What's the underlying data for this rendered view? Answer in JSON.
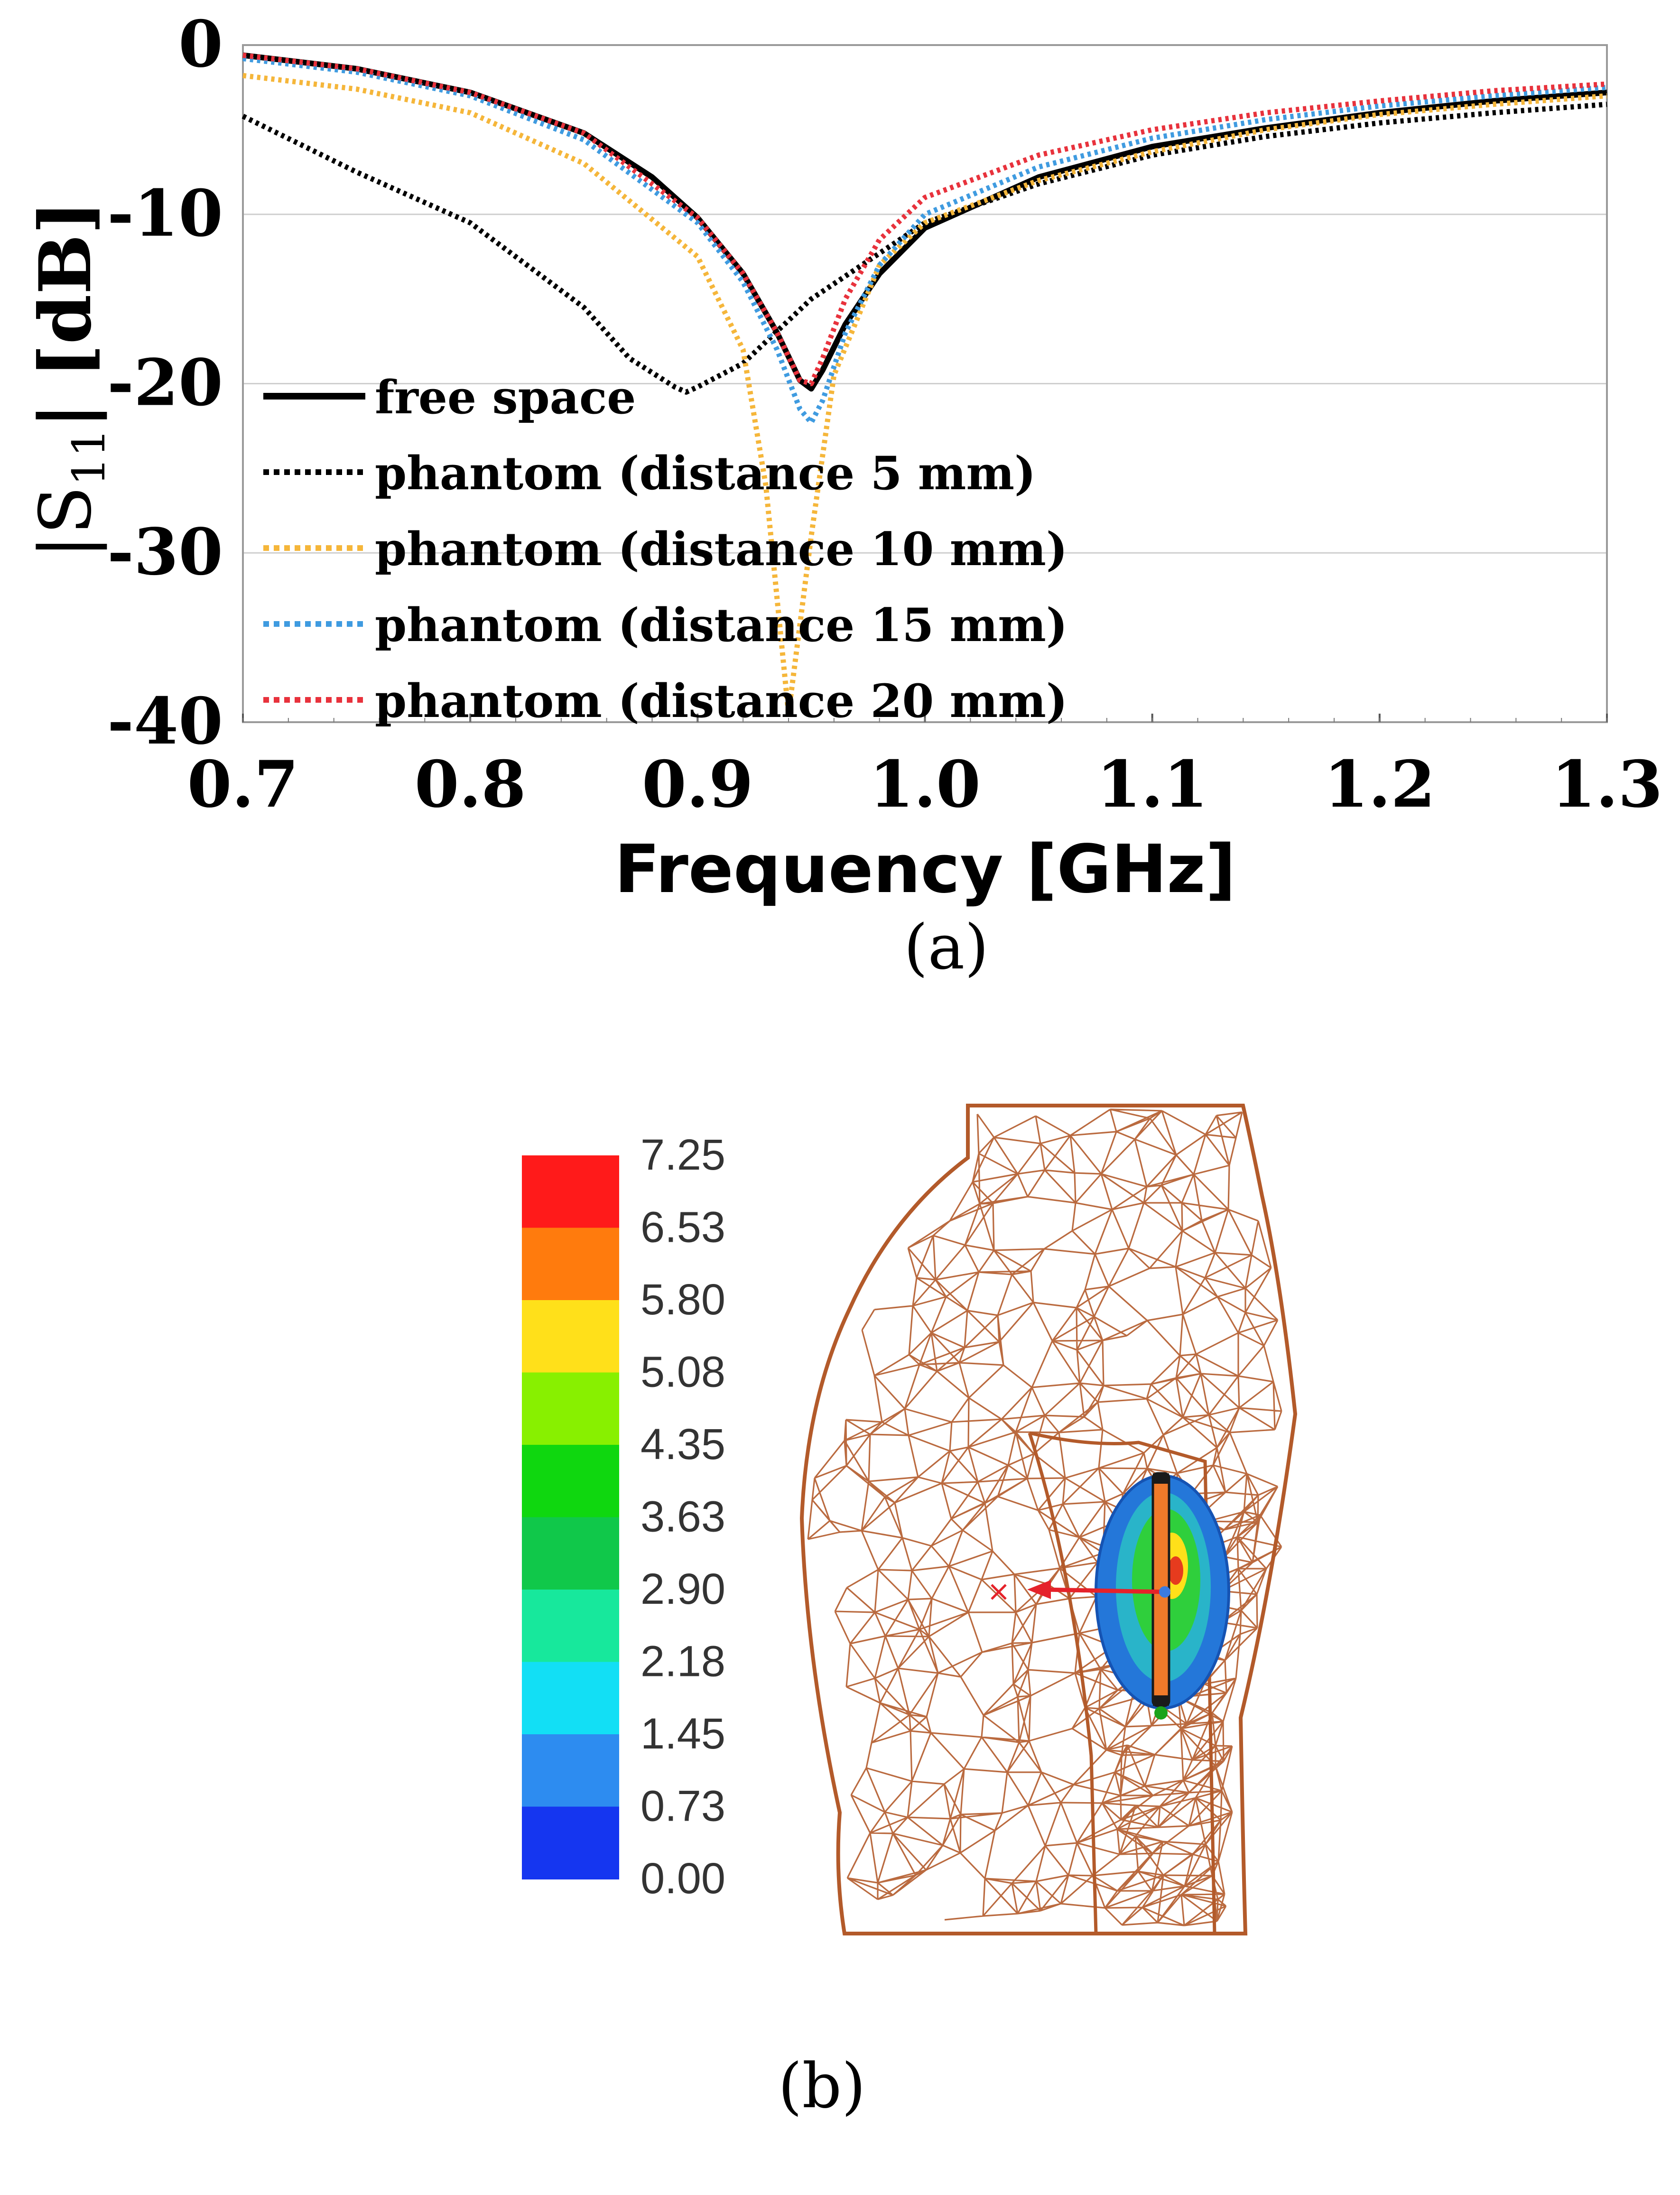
{
  "panel_a": {
    "label": "(a)"
  },
  "panel_b": {
    "label": "(b)"
  },
  "chart_data": [
    {
      "type": "line",
      "ylabel_prefix": "|S",
      "ylabel_sub": "11",
      "ylabel_suffix": "| [dB]",
      "xlabel": "Frequency [GHz]",
      "xlim": [
        0.7,
        1.3
      ],
      "ylim": [
        -40,
        0
      ],
      "xticks": [
        "0.7",
        "0.8",
        "0.9",
        "1.0",
        "1.1",
        "1.2",
        "1.3"
      ],
      "yticks": [
        "0",
        "-10",
        "-20",
        "-30",
        "-40"
      ],
      "grid": "horizontal",
      "legend_position": "bottom-left",
      "series": [
        {
          "name": "free space",
          "style": "solid",
          "color": "#000000",
          "x": [
            0.7,
            0.75,
            0.8,
            0.85,
            0.88,
            0.9,
            0.92,
            0.935,
            0.945,
            0.95,
            0.955,
            0.965,
            0.98,
            1.0,
            1.05,
            1.1,
            1.15,
            1.2,
            1.25,
            1.3
          ],
          "y": [
            -0.6,
            -1.4,
            -2.8,
            -5.2,
            -7.8,
            -10.2,
            -13.5,
            -17,
            -19.8,
            -20.3,
            -19.2,
            -16.5,
            -13.5,
            -10.8,
            -7.8,
            -6.0,
            -4.9,
            -4.0,
            -3.3,
            -2.8
          ]
        },
        {
          "name": "phantom (distance 5 mm)",
          "style": "dotted",
          "color": "#000000",
          "x": [
            0.7,
            0.75,
            0.8,
            0.85,
            0.87,
            0.89,
            0.895,
            0.9,
            0.92,
            0.95,
            1.0,
            1.05,
            1.1,
            1.15,
            1.2,
            1.25,
            1.3
          ],
          "y": [
            -4.2,
            -7.5,
            -10.5,
            -15.5,
            -18.5,
            -20.2,
            -20.5,
            -20.2,
            -18.8,
            -15.0,
            -10.5,
            -8.2,
            -6.5,
            -5.4,
            -4.6,
            -4.0,
            -3.5
          ]
        },
        {
          "name": "phantom (distance 10 mm)",
          "style": "dotted",
          "color": "#f5b63a",
          "x": [
            0.7,
            0.75,
            0.8,
            0.85,
            0.9,
            0.92,
            0.93,
            0.94,
            0.95,
            0.96,
            0.98,
            1.0,
            1.05,
            1.1,
            1.15,
            1.2,
            1.25,
            1.3
          ],
          "y": [
            -1.8,
            -2.6,
            -4.0,
            -7.0,
            -12.5,
            -18.0,
            -26.0,
            -39.5,
            -29.0,
            -19.5,
            -13.0,
            -10.5,
            -8.0,
            -6.3,
            -5.0,
            -4.1,
            -3.5,
            -3.0
          ]
        },
        {
          "name": "phantom (distance 15 mm)",
          "style": "dotted",
          "color": "#3f9be0",
          "x": [
            0.7,
            0.75,
            0.8,
            0.85,
            0.9,
            0.92,
            0.935,
            0.945,
            0.95,
            0.955,
            0.965,
            0.98,
            1.0,
            1.05,
            1.1,
            1.15,
            1.2,
            1.25,
            1.3
          ],
          "y": [
            -0.8,
            -1.6,
            -3.0,
            -5.6,
            -10.5,
            -14.0,
            -18.0,
            -21.5,
            -22.3,
            -21.0,
            -17.0,
            -13.0,
            -10.0,
            -7.2,
            -5.5,
            -4.4,
            -3.6,
            -3.0,
            -2.5
          ]
        },
        {
          "name": "phantom (distance 20 mm)",
          "style": "dotted",
          "color": "#e8323c",
          "x": [
            0.7,
            0.75,
            0.8,
            0.85,
            0.9,
            0.92,
            0.935,
            0.945,
            0.95,
            0.955,
            0.965,
            0.98,
            1.0,
            1.05,
            1.1,
            1.15,
            1.2,
            1.25,
            1.3
          ],
          "y": [
            -0.6,
            -1.4,
            -2.8,
            -5.2,
            -10.2,
            -13.5,
            -17.0,
            -19.8,
            -20.0,
            -18.5,
            -15.0,
            -11.5,
            -9.0,
            -6.5,
            -5.0,
            -4.0,
            -3.3,
            -2.7,
            -2.3
          ]
        }
      ]
    },
    {
      "type": "colorbar",
      "levels": [
        "7.25",
        "6.53",
        "5.80",
        "5.08",
        "4.35",
        "3.63",
        "2.90",
        "2.18",
        "1.45",
        "0.73",
        "0.00"
      ],
      "colors": [
        "#ff1a1a",
        "#ff7b0d",
        "#ffe01a",
        "#88f000",
        "#0fd70f",
        "#10c84a",
        "#17e89c",
        "#12dff5",
        "#2d8cf0",
        "#1536f0"
      ],
      "mesh_color": "#b35a2a",
      "sar_region_colors": {
        "outer": "#2477d9",
        "inner": "#2fcf3c",
        "core": "#e63b1e",
        "antenna": "#f07a2a"
      }
    }
  ]
}
